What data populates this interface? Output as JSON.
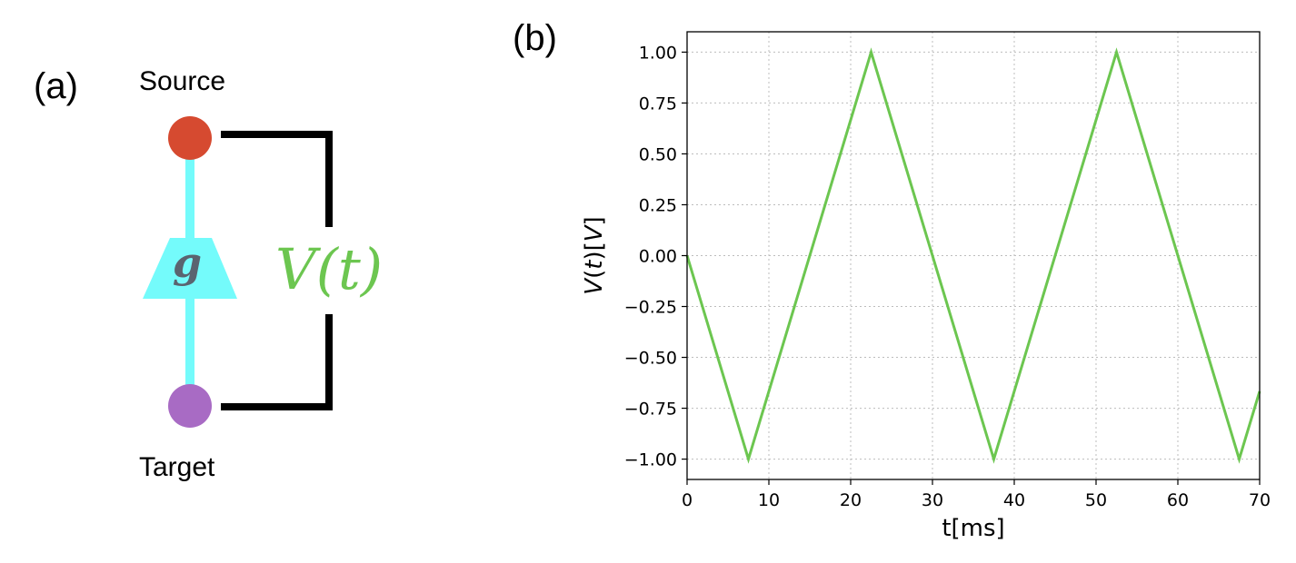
{
  "panel_a": {
    "label": "(a)",
    "source_label": "Source",
    "target_label": "Target",
    "gate_symbol": "g",
    "voltage_symbol": "V(t)",
    "colors": {
      "source_node": "#d64a30",
      "target_node": "#a86bc4",
      "edge": "#74fbfb",
      "gate_text": "#5a6470",
      "voltage": "#6cc650",
      "bracket": "#000000"
    }
  },
  "panel_b": {
    "label": "(b)"
  },
  "chart_data": {
    "type": "line",
    "xlabel": "t[ms]",
    "ylabel": "V(t)[V]",
    "xlim": [
      0,
      70
    ],
    "ylim": [
      -1.1,
      1.1
    ],
    "xticks": [
      0,
      10,
      20,
      30,
      40,
      50,
      60,
      70
    ],
    "xtick_labels": [
      "0",
      "10",
      "20",
      "30",
      "40",
      "50",
      "60",
      "70"
    ],
    "yticks": [
      1.0,
      0.75,
      0.5,
      0.25,
      0.0,
      -0.25,
      -0.5,
      -0.75,
      -1.0
    ],
    "ytick_labels": [
      "1.00",
      "0.75",
      "0.50",
      "0.25",
      "0.00",
      "−0.25",
      "−0.50",
      "−0.75",
      "−1.00"
    ],
    "grid": true,
    "series": [
      {
        "color": "#6cc650",
        "x": [
          0,
          7.5,
          22.5,
          37.5,
          52.5,
          67.5,
          70
        ],
        "y": [
          0,
          -1,
          1,
          -1,
          1,
          -1,
          -0.667
        ]
      }
    ]
  }
}
